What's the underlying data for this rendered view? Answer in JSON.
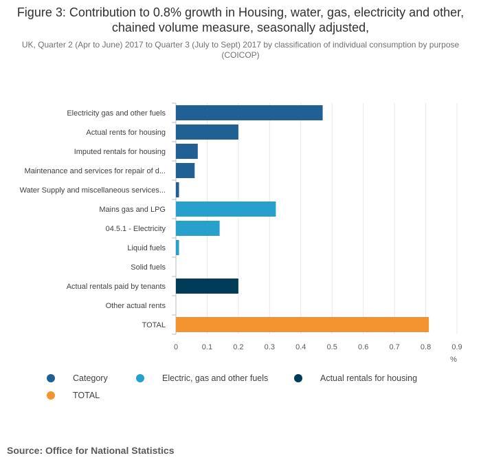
{
  "title": "Figure 3: Contribution to 0.8% growth in Housing, water, gas, electricity and other, chained volume measure, seasonally adjusted,",
  "subtitle": "UK, Quarter 2 (Apr to June) 2017 to Quarter 3 (July to Sept) 2017 by classification of individual consumption by purpose (COICOP)",
  "source": "Source: Office for National Statistics",
  "chart_data": {
    "type": "bar",
    "orientation": "horizontal",
    "categories": [
      "Electricity gas and other fuels",
      "Actual rents for housing",
      "Imputed rentals for housing",
      "Maintenance and services for repair of d...",
      "Water Supply and miscellaneous services...",
      "Mains gas and LPG",
      "04.5.1 - Electricity",
      "Liquid fuels",
      "Solid fuels",
      "Actual rentals paid by tenants",
      "Other actual rents",
      "TOTAL"
    ],
    "values": [
      0.47,
      0.2,
      0.07,
      0.06,
      0.01,
      0.32,
      0.14,
      0.01,
      0,
      0.2,
      0,
      0.81
    ],
    "groups": [
      0,
      0,
      0,
      0,
      0,
      1,
      1,
      1,
      1,
      2,
      2,
      3
    ],
    "series": [
      {
        "name": "Category",
        "color": "#206095"
      },
      {
        "name": "Electric, gas and other fuels",
        "color": "#27a0cc"
      },
      {
        "name": "Actual rentals for housing",
        "color": "#003c57"
      },
      {
        "name": "TOTAL",
        "color": "#f39431"
      }
    ],
    "xlabel": "%",
    "xlim": [
      0,
      0.9
    ],
    "xticks": [
      "0",
      "0.1",
      "0.2",
      "0.3",
      "0.4",
      "0.5",
      "0.6",
      "0.7",
      "0.8",
      "0.9"
    ],
    "grid": true,
    "legend_position": "bottom"
  }
}
